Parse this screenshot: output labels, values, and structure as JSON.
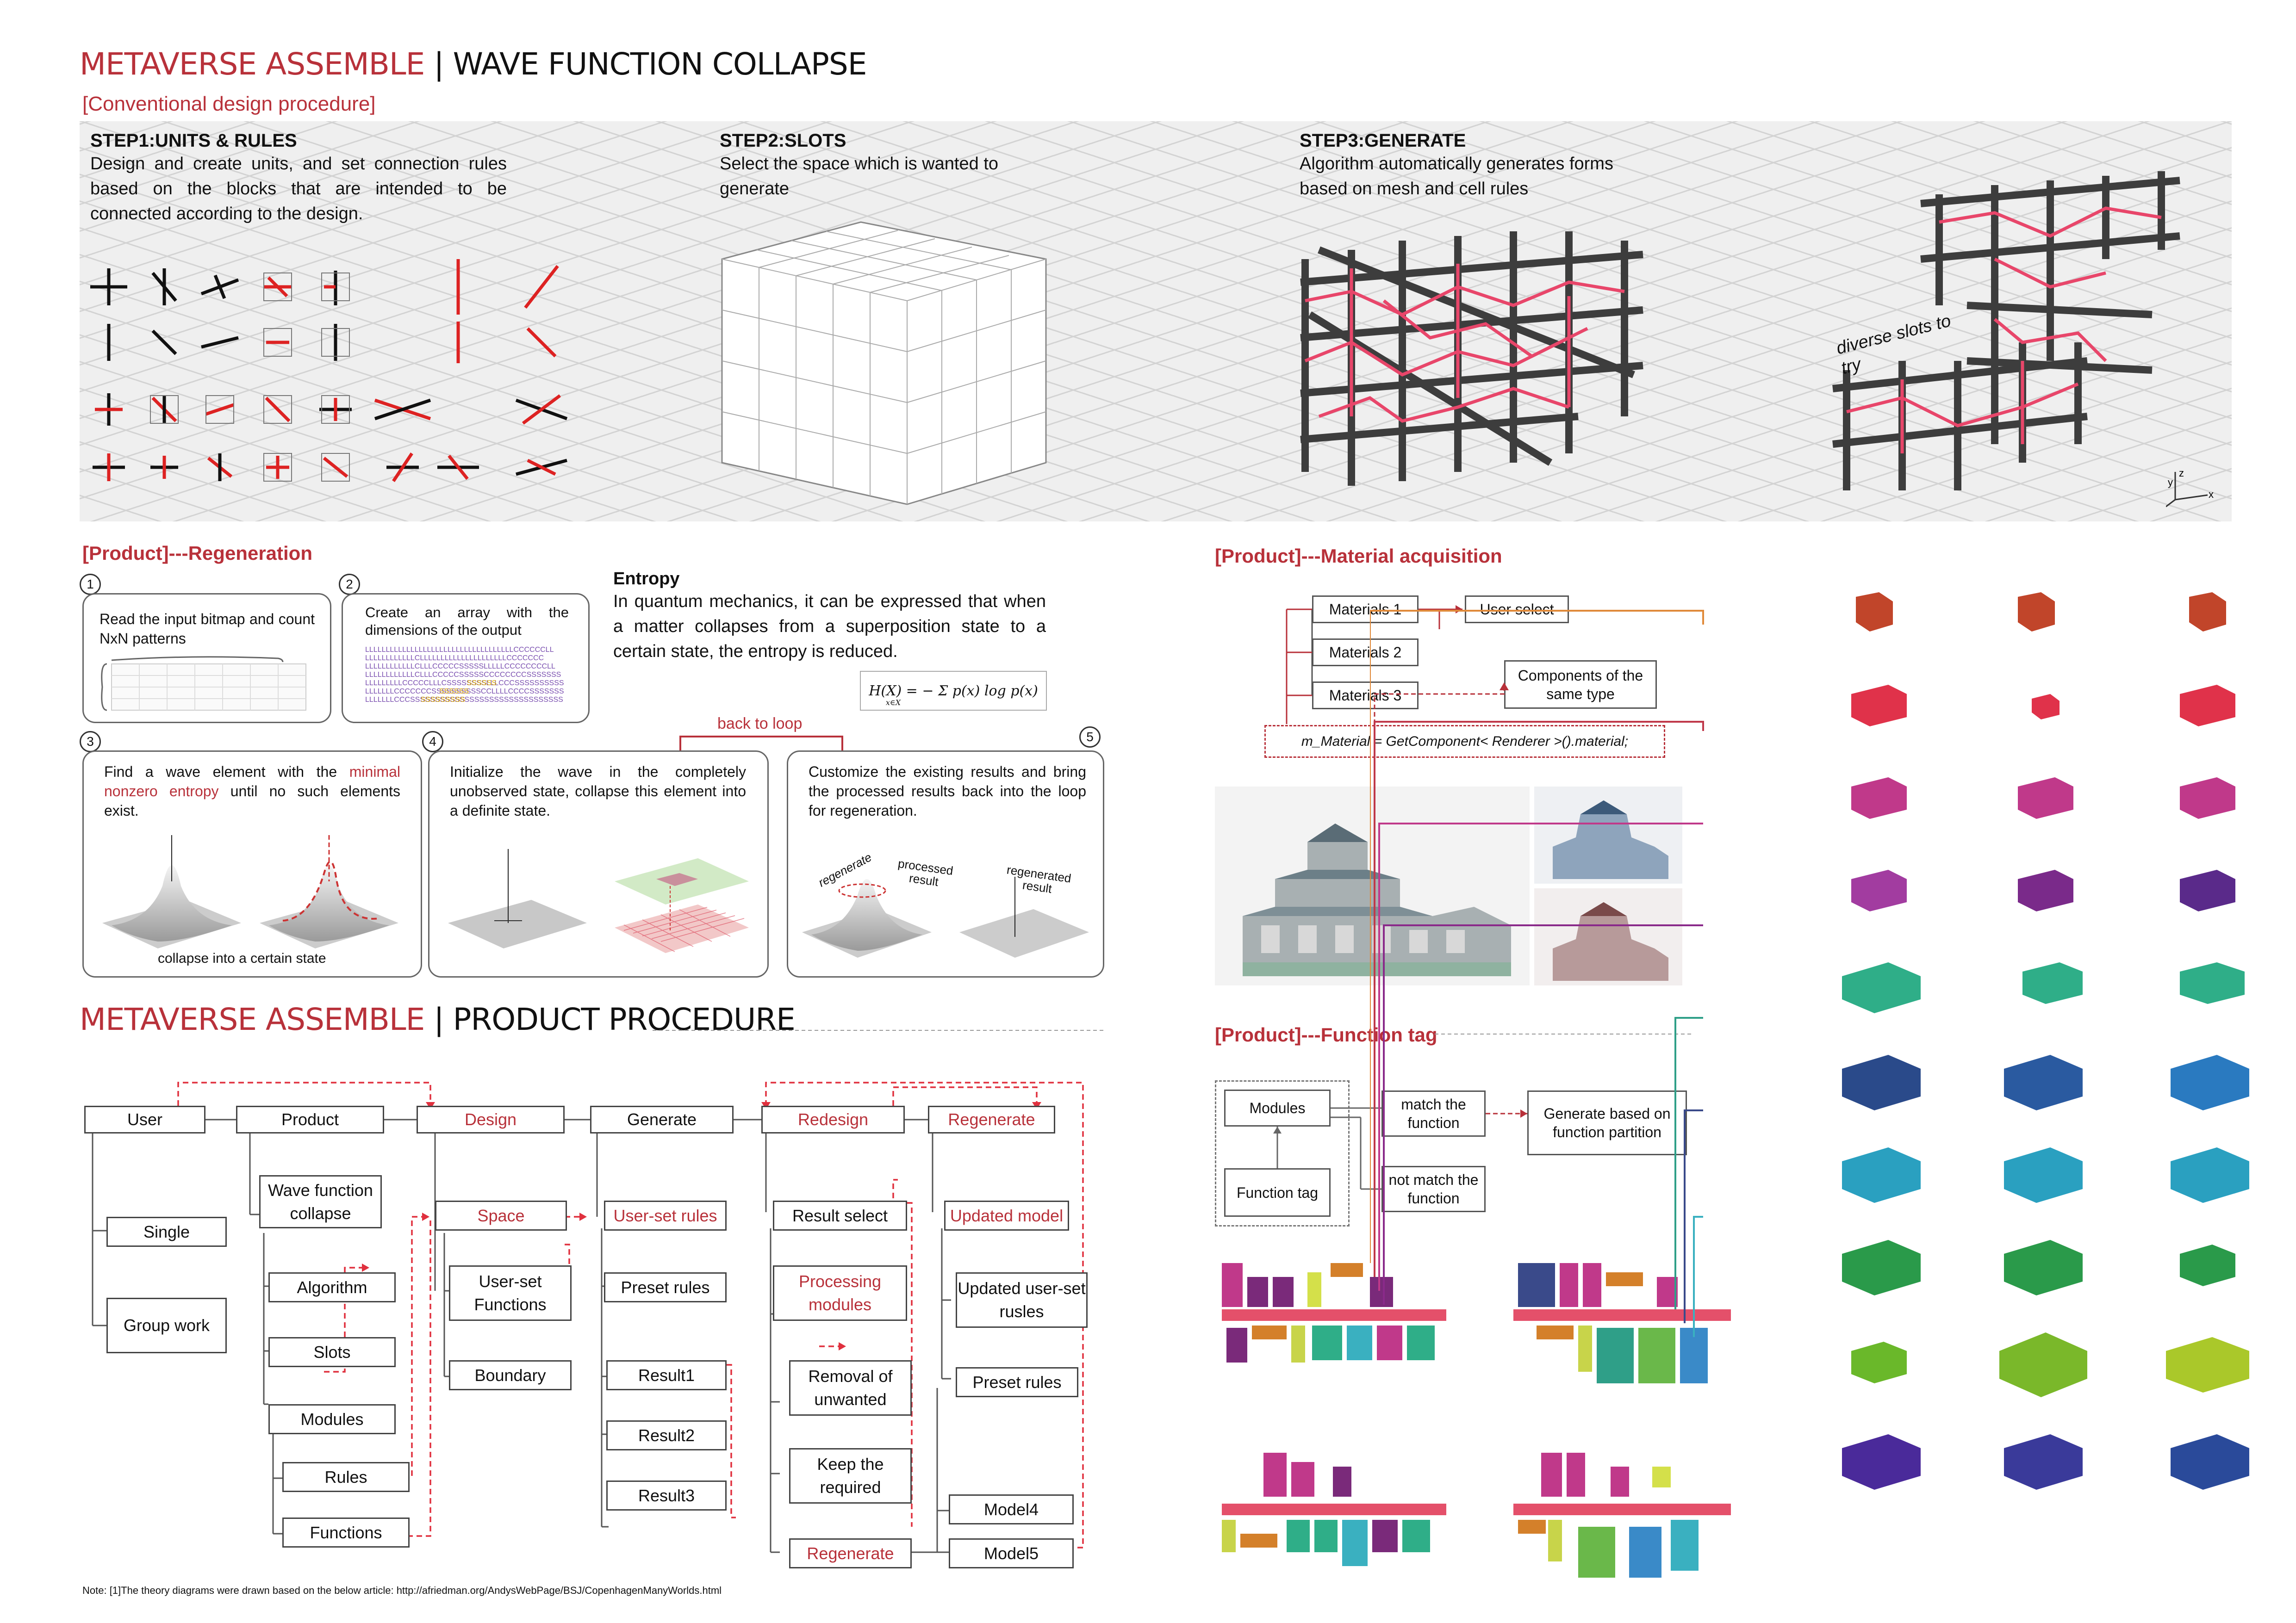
{
  "header": {
    "title_red": "METAVERSE ASSEMBLE",
    "title_sep": "|",
    "title_black": "WAVE FUNCTION COLLAPSE",
    "subtitle": "[Conventional design procedure]"
  },
  "steps": [
    {
      "title": "STEP1:UNITS & RULES",
      "text": "Design and create units, and set connection rules based on the blocks that are intended to be connected according to the design."
    },
    {
      "title": "STEP2:SLOTS",
      "text": "Select the space which is wanted to generate"
    },
    {
      "title": "STEP3:GENERATE",
      "text": "Algorithm automatically generates forms based on mesh and cell rules"
    }
  ],
  "diverse_slots": "diverse slots to try",
  "axes_label": {
    "y": "y",
    "z": "z",
    "x": "x"
  },
  "regen": {
    "title": "[Product]---Regeneration",
    "p1": {
      "num": "1",
      "text": "Read the input bitmap and count NxN patterns"
    },
    "p2": {
      "num": "2",
      "text": "Create an array with the dimensions of the output"
    },
    "entropy_title": "Entropy",
    "entropy_text": "In quantum mechanics, it can be expressed that when a matter collapses from a superposition state to a certain state, the entropy is reduced.",
    "formula": "H(X) = − Σ p(x) log p(x)",
    "formula_sub": "x∈X",
    "back_to_loop": "back to loop",
    "p3": {
      "num": "3",
      "text_a": "Find a wave element with the ",
      "text_b": "minimal nonzero entropy",
      "text_c": " until no such elements exist.",
      "caption": "collapse into a certain state"
    },
    "p4": {
      "num": "4",
      "text": "Initialize the wave in the completely unobserved state, collapse this element into a definite state."
    },
    "p5": {
      "num": "5",
      "text": "Customize the existing results and bring the processed results back into the loop for regeneration.",
      "label_regenerate": "regenerate",
      "label_processed": "processed result",
      "label_regenerated": "regenerated result"
    }
  },
  "material": {
    "title": "[Product]---Material acquisition",
    "materials": [
      "Materials 1",
      "Materials 2",
      "Materials 3"
    ],
    "user_select": "User select",
    "components": "Components of the same type",
    "code": "m_Material = GetComponent< Renderer >().material;"
  },
  "function_tag": {
    "title": "[Product]---Function tag",
    "modules": "Modules",
    "function_tag": "Function tag",
    "match": "match the function",
    "not_match": "not match the function",
    "generate": "Generate based on function partition"
  },
  "procedure": {
    "title_red": "METAVERSE ASSEMBLE",
    "title_sep": "|",
    "title_black": "PRODUCT PROCEDURE",
    "nodes": {
      "user": "User",
      "product": "Product",
      "design": "Design",
      "generate": "Generate",
      "redesign": "Redesign",
      "regenerate_top": "Regenerate",
      "single": "Single",
      "group_work": "Group work",
      "wfc": "Wave function collapse",
      "algorithm": "Algorithm",
      "slots": "Slots",
      "modules": "Modules",
      "rules": "Rules",
      "functions": "Functions",
      "space": "Space",
      "user_set_functions": "User-set Functions",
      "boundary": "Boundary",
      "user_set_rules": "User-set rules",
      "preset_rules": "Preset rules",
      "result1": "Result1",
      "result2": "Result2",
      "result3": "Result3",
      "result_select": "Result select",
      "processing_modules": "Processing modules",
      "removal": "Removal of unwanted",
      "keep": "Keep the required",
      "regenerate_bottom": "Regenerate",
      "updated_model": "Updated model",
      "updated_rules": "Updated user-set rusles",
      "preset_rules2": "Preset rules",
      "model4": "Model4",
      "model5": "Model5"
    }
  },
  "note": "Note: [1]The theory diagrams were drawn based on the below article: http://afriedman.org/AndysWebPage/BSJ/CopenhagenManyWorlds.html",
  "colors": {
    "accent_red": "#b8313a",
    "grid_bg": "#efefef",
    "frame_dark": "#3d3d3d",
    "frame_pink": "#e8466a"
  },
  "icons": [
    "unit-icon",
    "slot-grid-icon",
    "generated-frame-icon",
    "module-box-icon",
    "building-render-icon",
    "bar-layout-icon"
  ]
}
